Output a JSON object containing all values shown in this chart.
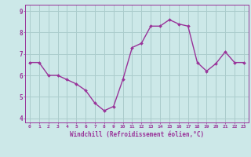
{
  "x": [
    0,
    1,
    2,
    3,
    4,
    5,
    6,
    7,
    8,
    9,
    10,
    11,
    12,
    13,
    14,
    15,
    16,
    17,
    18,
    19,
    20,
    21,
    22,
    23
  ],
  "y": [
    6.6,
    6.6,
    6.0,
    6.0,
    5.8,
    5.6,
    5.3,
    4.7,
    4.35,
    4.55,
    5.8,
    7.3,
    7.5,
    8.3,
    8.3,
    8.6,
    8.4,
    8.3,
    6.6,
    6.2,
    6.55,
    7.1,
    6.6,
    6.6
  ],
  "line_color": "#993399",
  "marker": "D",
  "marker_size": 2,
  "line_width": 1.0,
  "background_color": "#cce8e8",
  "grid_color": "#aacccc",
  "xlabel": "Windchill (Refroidissement éolien,°C)",
  "xlabel_color": "#993399",
  "tick_color": "#993399",
  "ylim": [
    3.8,
    9.3
  ],
  "xlim": [
    -0.5,
    23.5
  ],
  "yticks": [
    4,
    5,
    6,
    7,
    8,
    9
  ],
  "xticks": [
    0,
    1,
    2,
    3,
    4,
    5,
    6,
    7,
    8,
    9,
    10,
    11,
    12,
    13,
    14,
    15,
    16,
    17,
    18,
    19,
    20,
    21,
    22,
    23
  ]
}
